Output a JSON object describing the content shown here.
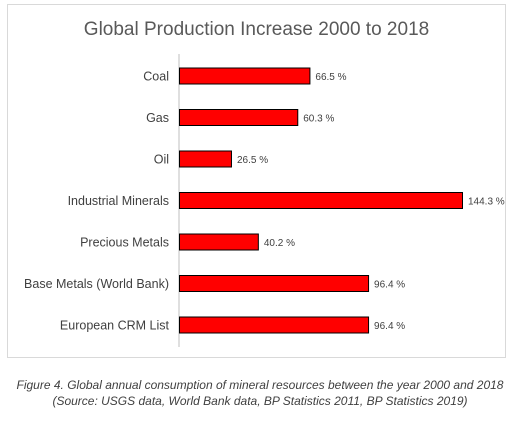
{
  "chart_data": {
    "type": "bar",
    "orientation": "horizontal",
    "title": "Global Production Increase 2000 to 2018",
    "categories": [
      "Coal",
      "Gas",
      "Oil",
      "Industrial Minerals",
      "Precious Metals",
      "Base Metals (World Bank)",
      "European CRM List"
    ],
    "values": [
      66.5,
      60.3,
      26.5,
      144.3,
      40.2,
      96.4,
      96.4
    ],
    "data_labels": [
      "66.5 %",
      "60.3 %",
      "26.5 %",
      "144.3 %",
      "40.2 %",
      "96.4 %",
      "96.4 %"
    ],
    "xlim": [
      0,
      144.3
    ],
    "grid": false,
    "legend": "none",
    "bar_color": "#ff0000",
    "bar_edge_color": "#000000"
  },
  "caption": {
    "line1": "Figure 4. Global annual consumption of mineral resources between the year 2000 and 2018",
    "line2": "(Source: USGS data, World Bank data, BP Statistics 2011, BP Statistics 2019)"
  }
}
